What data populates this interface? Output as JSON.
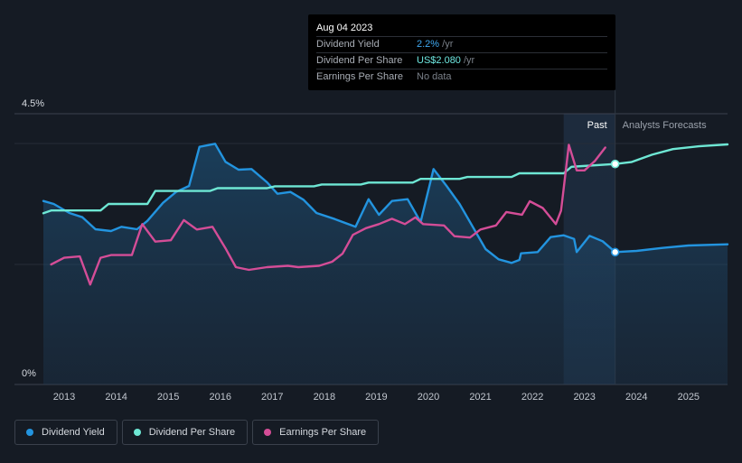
{
  "tooltip": {
    "date": "Aug 04 2023",
    "rows": [
      {
        "label": "Dividend Yield",
        "value": "2.2%",
        "unit": " /yr"
      },
      {
        "label": "Dividend Per Share",
        "value": "US$2.080",
        "unit": " /yr"
      },
      {
        "label": "Earnings Per Share",
        "value": "No data",
        "unit": ""
      }
    ]
  },
  "legend": [
    {
      "label": "Dividend Yield",
      "color": "#2394df"
    },
    {
      "label": "Dividend Per Share",
      "color": "#6ee7d4"
    },
    {
      "label": "Earnings Per Share",
      "color": "#d44d97"
    }
  ],
  "chart_data": {
    "type": "line",
    "past_label": "Past",
    "forecast_label": "Analysts Forecasts",
    "y_tick_labels": [
      {
        "value": 4.5,
        "label": "4.5%"
      },
      {
        "value": 0,
        "label": "0%"
      }
    ],
    "ylim": [
      0,
      4.5
    ],
    "xlim": [
      2012.6,
      2025.75
    ],
    "x_tick_labels": [
      "2013",
      "2014",
      "2015",
      "2016",
      "2017",
      "2018",
      "2019",
      "2020",
      "2021",
      "2022",
      "2023",
      "2024",
      "2025"
    ],
    "x_ticks": [
      2013,
      2014,
      2015,
      2016,
      2017,
      2018,
      2019,
      2020,
      2021,
      2022,
      2023,
      2024,
      2025
    ],
    "past_region_start": 2022.6,
    "today": 2023.59,
    "grid": true,
    "series": [
      {
        "name": "Dividend Yield",
        "color": "#2394df",
        "axis": "yield",
        "area": true,
        "points": [
          [
            2012.6,
            3.05
          ],
          [
            2012.8,
            3.0
          ],
          [
            2013.1,
            2.85
          ],
          [
            2013.35,
            2.78
          ],
          [
            2013.6,
            2.58
          ],
          [
            2013.9,
            2.55
          ],
          [
            2014.1,
            2.62
          ],
          [
            2014.4,
            2.58
          ],
          [
            2014.6,
            2.72
          ],
          [
            2014.9,
            3.02
          ],
          [
            2015.15,
            3.2
          ],
          [
            2015.4,
            3.3
          ],
          [
            2015.6,
            3.95
          ],
          [
            2015.9,
            4.0
          ],
          [
            2016.1,
            3.7
          ],
          [
            2016.35,
            3.57
          ],
          [
            2016.6,
            3.58
          ],
          [
            2016.9,
            3.36
          ],
          [
            2017.1,
            3.17
          ],
          [
            2017.35,
            3.2
          ],
          [
            2017.6,
            3.07
          ],
          [
            2017.85,
            2.85
          ],
          [
            2018.2,
            2.75
          ],
          [
            2018.6,
            2.62
          ],
          [
            2018.85,
            3.08
          ],
          [
            2019.05,
            2.82
          ],
          [
            2019.3,
            3.05
          ],
          [
            2019.6,
            3.08
          ],
          [
            2019.85,
            2.7
          ],
          [
            2020.1,
            3.58
          ],
          [
            2020.35,
            3.3
          ],
          [
            2020.6,
            3.0
          ],
          [
            2020.9,
            2.55
          ],
          [
            2021.1,
            2.25
          ],
          [
            2021.35,
            2.08
          ],
          [
            2021.6,
            2.02
          ],
          [
            2021.75,
            2.07
          ],
          [
            2021.78,
            2.18
          ],
          [
            2022.1,
            2.2
          ],
          [
            2022.35,
            2.45
          ],
          [
            2022.6,
            2.48
          ],
          [
            2022.8,
            2.42
          ],
          [
            2022.85,
            2.2
          ],
          [
            2023.1,
            2.47
          ],
          [
            2023.35,
            2.38
          ],
          [
            2023.59,
            2.2
          ],
          [
            2024.0,
            2.22
          ],
          [
            2024.5,
            2.27
          ],
          [
            2025.0,
            2.31
          ],
          [
            2025.75,
            2.33
          ]
        ]
      },
      {
        "name": "Dividend Per Share",
        "color": "#6ee7d4",
        "axis": "dps",
        "area": false,
        "points": [
          [
            2012.6,
            1.55
          ],
          [
            2012.75,
            1.58
          ],
          [
            2013.7,
            1.58
          ],
          [
            2013.85,
            1.65
          ],
          [
            2014.6,
            1.65
          ],
          [
            2014.75,
            1.79
          ],
          [
            2015.8,
            1.79
          ],
          [
            2015.95,
            1.82
          ],
          [
            2016.9,
            1.82
          ],
          [
            2017.05,
            1.84
          ],
          [
            2017.8,
            1.84
          ],
          [
            2017.95,
            1.86
          ],
          [
            2018.7,
            1.86
          ],
          [
            2018.85,
            1.88
          ],
          [
            2019.7,
            1.88
          ],
          [
            2019.85,
            1.92
          ],
          [
            2020.6,
            1.92
          ],
          [
            2020.75,
            1.94
          ],
          [
            2021.6,
            1.94
          ],
          [
            2021.75,
            1.98
          ],
          [
            2022.6,
            1.98
          ],
          [
            2022.75,
            2.05
          ],
          [
            2023.59,
            2.08
          ],
          [
            2023.9,
            2.1
          ],
          [
            2024.3,
            2.18
          ],
          [
            2024.7,
            2.24
          ],
          [
            2025.2,
            2.27
          ],
          [
            2025.75,
            2.29
          ]
        ]
      },
      {
        "name": "Earnings Per Share",
        "color": "#d44d97",
        "axis": "eps",
        "area": false,
        "points": [
          [
            2012.75,
            0.9
          ],
          [
            2013.0,
            0.95
          ],
          [
            2013.3,
            0.96
          ],
          [
            2013.5,
            0.75
          ],
          [
            2013.7,
            0.95
          ],
          [
            2013.9,
            0.97
          ],
          [
            2014.3,
            0.97
          ],
          [
            2014.5,
            1.2
          ],
          [
            2014.75,
            1.07
          ],
          [
            2015.05,
            1.08
          ],
          [
            2015.3,
            1.23
          ],
          [
            2015.55,
            1.16
          ],
          [
            2015.85,
            1.18
          ],
          [
            2016.1,
            1.02
          ],
          [
            2016.3,
            0.88
          ],
          [
            2016.55,
            0.86
          ],
          [
            2016.9,
            0.88
          ],
          [
            2017.3,
            0.89
          ],
          [
            2017.5,
            0.88
          ],
          [
            2017.9,
            0.89
          ],
          [
            2018.15,
            0.92
          ],
          [
            2018.35,
            0.98
          ],
          [
            2018.55,
            1.12
          ],
          [
            2018.8,
            1.17
          ],
          [
            2019.05,
            1.2
          ],
          [
            2019.3,
            1.24
          ],
          [
            2019.55,
            1.2
          ],
          [
            2019.75,
            1.25
          ],
          [
            2019.9,
            1.2
          ],
          [
            2020.3,
            1.19
          ],
          [
            2020.5,
            1.11
          ],
          [
            2020.8,
            1.1
          ],
          [
            2021.0,
            1.16
          ],
          [
            2021.3,
            1.19
          ],
          [
            2021.5,
            1.29
          ],
          [
            2021.8,
            1.27
          ],
          [
            2021.95,
            1.37
          ],
          [
            2022.2,
            1.32
          ],
          [
            2022.45,
            1.2
          ],
          [
            2022.55,
            1.3
          ],
          [
            2022.7,
            1.79
          ],
          [
            2022.85,
            1.6
          ],
          [
            2023.0,
            1.6
          ],
          [
            2023.2,
            1.67
          ],
          [
            2023.4,
            1.77
          ]
        ]
      }
    ],
    "markers": [
      {
        "series": "Dividend Yield",
        "x": 2023.59,
        "y": 2.2
      },
      {
        "series": "Dividend Per Share",
        "x": 2023.59,
        "y": 2.08
      }
    ]
  }
}
